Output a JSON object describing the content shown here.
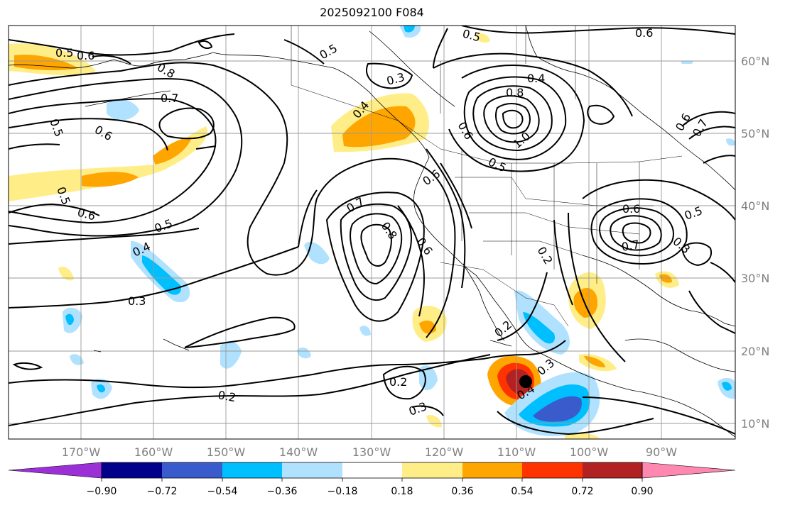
{
  "title": "2025092100 F084",
  "map": {
    "lon_ticks": [
      "170°W",
      "160°W",
      "150°W",
      "140°W",
      "130°W",
      "120°W",
      "110°W",
      "100°W",
      "90°W"
    ],
    "lat_ticks": [
      "60°N",
      "50°N",
      "40°N",
      "30°N",
      "20°N",
      "10°N"
    ],
    "grid": true
  },
  "colorbar": {
    "orientation": "horizontal",
    "extend": "both",
    "labels": [
      "−0.90",
      "−0.72",
      "−0.54",
      "−0.36",
      "−0.18",
      "0.18",
      "0.36",
      "0.54",
      "0.72",
      "0.90"
    ],
    "colors": [
      "#9b30d6",
      "#00008b",
      "#3a5bcc",
      "#00bfff",
      "#b0e2ff",
      "#ffffff",
      "#ffee88",
      "#ffa500",
      "#ff3300",
      "#b22222",
      "#ff88b0"
    ]
  },
  "contour_labels": [
    "0.5",
    "0.6",
    "0.8",
    "0.7",
    "0.6",
    "0.5",
    "0.4",
    "0.3",
    "0.5",
    "0.6",
    "0.4",
    "0.8",
    "1.0",
    "0.5",
    "0.6",
    "0.7",
    "0.8",
    "0.6",
    "0.5",
    "0.4",
    "0.3",
    "0.2",
    "0.2",
    "0.3",
    "0.2",
    "0.4",
    "0.3",
    "0.6",
    "0.7",
    "0.3",
    "0.2",
    "0.6",
    "0.5",
    "0.5",
    "0.6",
    "0.5",
    "0.6",
    "0.7"
  ]
}
